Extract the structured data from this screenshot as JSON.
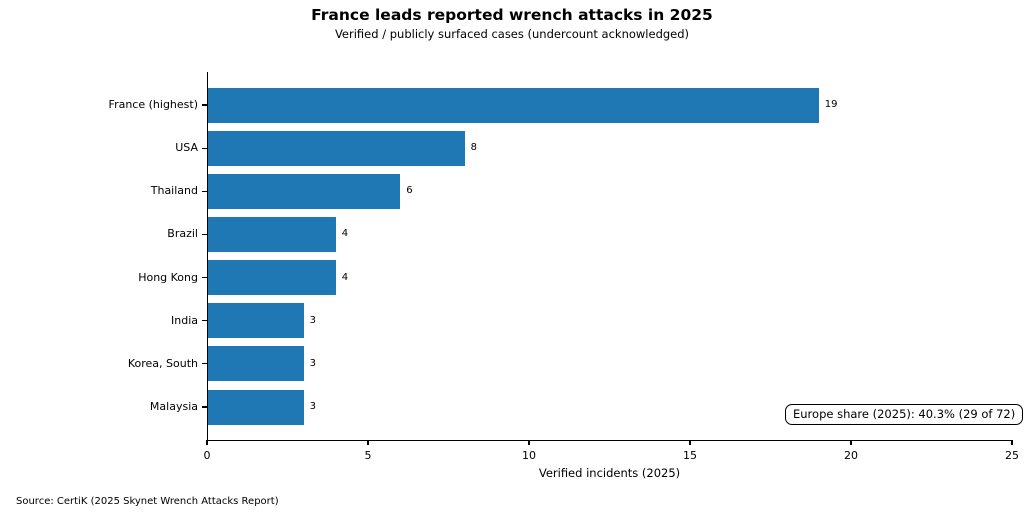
{
  "figure": {
    "source_note": "Source: CertiK (2025 Skynet Wrench Attacks Report)"
  },
  "colors": {
    "bar": "#1f77b4",
    "text": "#000000",
    "background": "#ffffff",
    "annotation_border": "#000000",
    "annotation_bg": "#ffffff"
  },
  "chart_data": {
    "type": "bar",
    "orientation": "horizontal",
    "title": "France leads reported wrench attacks in 2025",
    "subtitle": "Verified / publicly surfaced cases (undercount acknowledged)",
    "categories": [
      "France (highest)",
      "USA",
      "Thailand",
      "Brazil",
      "Hong Kong",
      "India",
      "Korea, South",
      "Malaysia"
    ],
    "values": [
      19,
      8,
      6,
      4,
      4,
      3,
      3,
      3
    ],
    "value_labels_shown": true,
    "xlabel": "Verified incidents (2025)",
    "ylabel": "",
    "xlim": [
      0,
      25
    ],
    "xticks": [
      0,
      5,
      10,
      15,
      20,
      25
    ],
    "grid": false,
    "legend": false,
    "bar_color": "#1f77b4",
    "annotation": "Europe share (2025): 40.3% (29 of 72)",
    "annotation_position": "bottom-right",
    "source": "Source: CertiK (2025 Skynet Wrench Attacks Report)"
  }
}
